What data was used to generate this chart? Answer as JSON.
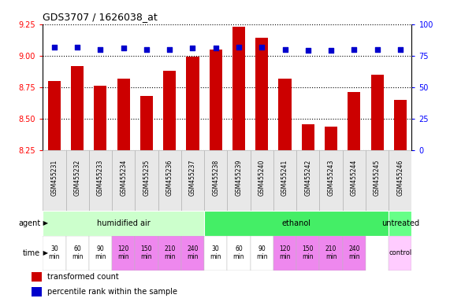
{
  "title": "GDS3707 / 1626038_at",
  "samples": [
    "GSM455231",
    "GSM455232",
    "GSM455233",
    "GSM455234",
    "GSM455235",
    "GSM455236",
    "GSM455237",
    "GSM455238",
    "GSM455239",
    "GSM455240",
    "GSM455241",
    "GSM455242",
    "GSM455243",
    "GSM455244",
    "GSM455245",
    "GSM455246"
  ],
  "bar_values": [
    8.8,
    8.92,
    8.76,
    8.82,
    8.68,
    8.88,
    8.99,
    9.05,
    9.23,
    9.14,
    8.82,
    8.46,
    8.44,
    8.71,
    8.85,
    8.65
  ],
  "dot_values": [
    82,
    82,
    80,
    81,
    80,
    80,
    81,
    81,
    82,
    82,
    80,
    79,
    79,
    80,
    80,
    80
  ],
  "ylim_left": [
    8.25,
    9.25
  ],
  "ylim_right": [
    0,
    100
  ],
  "yticks_left": [
    8.25,
    8.5,
    8.75,
    9.0,
    9.25
  ],
  "yticks_right": [
    0,
    25,
    50,
    75,
    100
  ],
  "bar_color": "#cc0000",
  "dot_color": "#0000cc",
  "bg_color": "#ffffff",
  "agent_groups": [
    {
      "text": "humidified air",
      "start": 0,
      "end": 7,
      "color": "#ccffcc"
    },
    {
      "text": "ethanol",
      "start": 7,
      "end": 15,
      "color": "#44ee66"
    },
    {
      "text": "untreated",
      "start": 15,
      "end": 16,
      "color": "#66ff88"
    }
  ],
  "time_labels": [
    "30\nmin",
    "60\nmin",
    "90\nmin",
    "120\nmin",
    "150\nmin",
    "210\nmin",
    "240\nmin",
    "30\nmin",
    "60\nmin",
    "90\nmin",
    "120\nmin",
    "150\nmin",
    "210\nmin",
    "240\nmin"
  ],
  "time_colors": [
    "#ffffff",
    "#ffffff",
    "#ffffff",
    "#ee88ee",
    "#ee88ee",
    "#ee88ee",
    "#ee88ee",
    "#ffffff",
    "#ffffff",
    "#ffffff",
    "#ee88ee",
    "#ee88ee",
    "#ee88ee",
    "#ee88ee"
  ],
  "control_text": "control",
  "control_color": "#ffccff",
  "legend": [
    {
      "color": "#cc0000",
      "label": "transformed count"
    },
    {
      "color": "#0000cc",
      "label": "percentile rank within the sample"
    }
  ]
}
